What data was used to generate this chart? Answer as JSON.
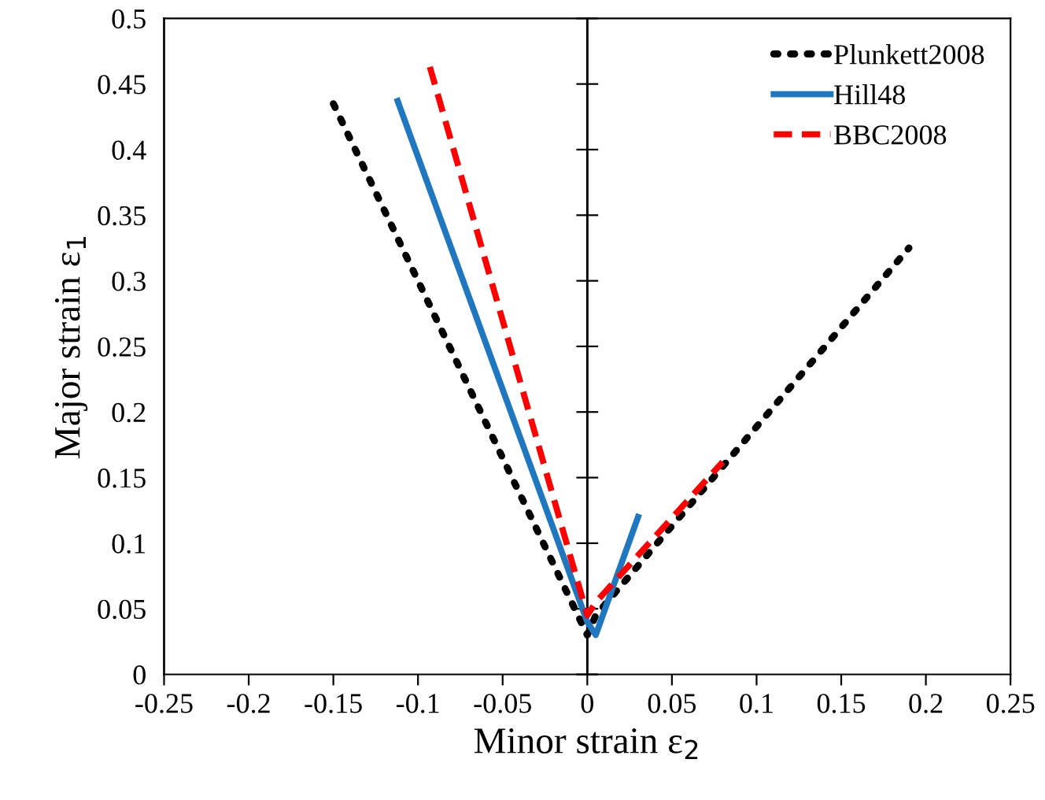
{
  "chart_data": {
    "type": "line",
    "xlabel": "Minor strain ε$_{2}$",
    "ylabel": "Major strain ε$_{1}$",
    "xlim": [
      -0.25,
      0.25
    ],
    "xticks": [
      -0.25,
      -0.2,
      -0.15,
      -0.1,
      -0.05,
      0,
      0.05,
      0.1,
      0.15,
      0.2,
      0.25
    ],
    "ylim": [
      0,
      0.5
    ],
    "yticks": [
      0,
      0.05,
      0.1,
      0.15,
      0.2,
      0.25,
      0.3,
      0.35,
      0.4,
      0.45,
      0.5
    ],
    "grid": false,
    "ref_lines": [
      {
        "axis": "x",
        "value": 0,
        "color": "#000000",
        "line_style": "solid"
      }
    ],
    "legend": "top right",
    "marker": "none",
    "series": [
      {
        "name": "Plunkett2008",
        "color": "#000000",
        "line_style": "dotted",
        "x": [
          -0.15,
          0,
          0.005,
          0.19
        ],
        "values": [
          0.435,
          0.03,
          0.045,
          0.325
        ]
      },
      {
        "name": "Hill48",
        "color": "#1f77c0",
        "line_style": "solid",
        "x": [
          -0.112,
          0,
          0.005,
          0.03
        ],
        "values": [
          0.437,
          0.04,
          0.03,
          0.12
        ]
      },
      {
        "name": "BBC2008",
        "color": "#ff0000",
        "line_style": "dashed",
        "x": [
          -0.093,
          0,
          0.005,
          0.08
        ],
        "values": [
          0.463,
          0.045,
          0.055,
          0.162
        ]
      }
    ]
  }
}
